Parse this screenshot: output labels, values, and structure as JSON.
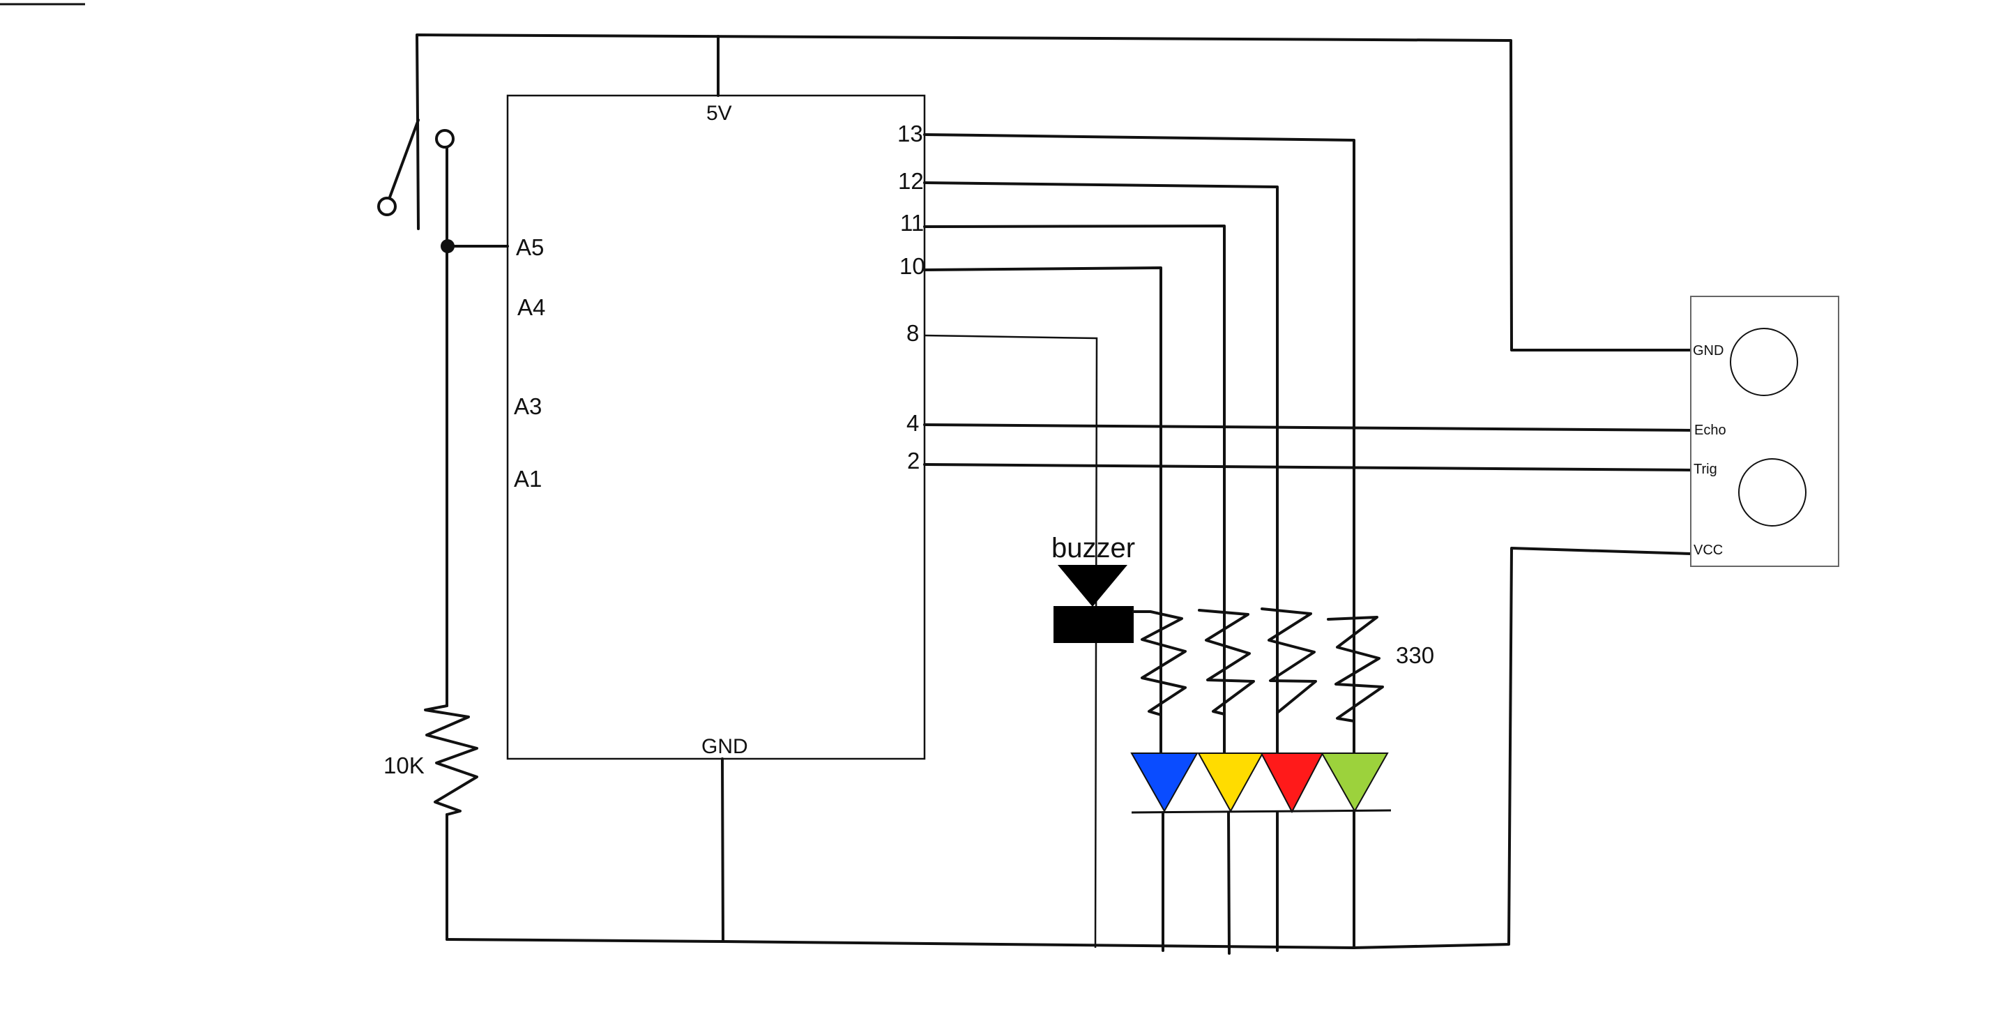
{
  "arduino": {
    "top_pin": "5V",
    "bottom_pin": "GND",
    "left_pins": [
      "A5",
      "A4",
      "A3",
      "A1"
    ],
    "right_pins": [
      "13",
      "12",
      "11",
      "10",
      "8",
      "4",
      "2"
    ]
  },
  "sensor": {
    "pins": [
      "GND",
      "Echo",
      "Trig",
      "VCC"
    ]
  },
  "labels": {
    "buzzer": "buzzer",
    "resistor_pulldown": "10K",
    "resistor_led": "330"
  },
  "colors": {
    "wire": "#111111",
    "led_blue": "#0a4cff",
    "led_yellow": "#ffdc00",
    "led_red": "#ff1a1a",
    "led_green": "#9cd23c",
    "buzzer": "#000000"
  }
}
